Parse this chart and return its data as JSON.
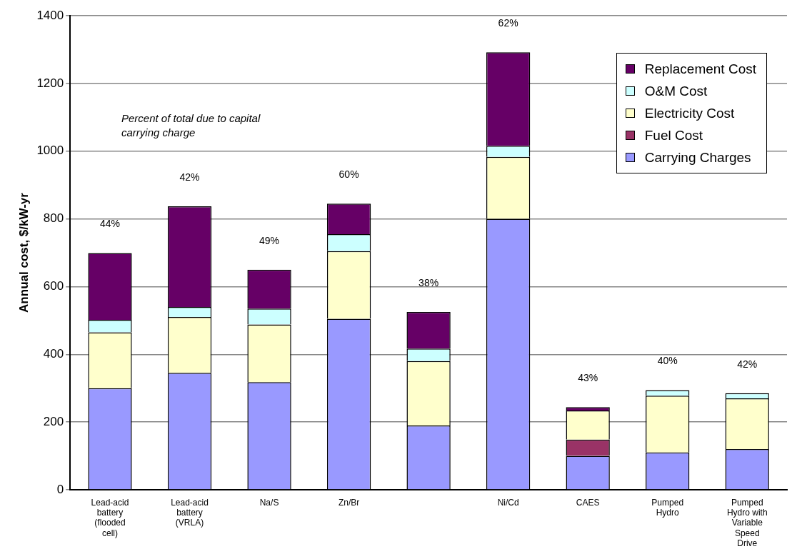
{
  "chart_data": {
    "type": "bar",
    "stacked": true,
    "ylabel": "Annual cost, $/kW-yr",
    "categories": [
      "Lead-acid battery (flooded cell)",
      "Lead-acid battery (VRLA)",
      "Na/S",
      "Zn/Br",
      null,
      "Ni/Cd",
      "CAES",
      "Pumped Hydro",
      "Pumped Hydro with Variable Speed Drive"
    ],
    "series": [
      {
        "name": "Carrying Charges",
        "color": "#9999ff",
        "values": [
          300,
          345,
          318,
          505,
          190,
          800,
          100,
          110,
          120
        ]
      },
      {
        "name": "Fuel Cost",
        "color": "#993366",
        "values": [
          0,
          0,
          0,
          0,
          0,
          0,
          48,
          0,
          0
        ]
      },
      {
        "name": "Electricity Cost",
        "color": "#ffffcc",
        "values": [
          165,
          165,
          170,
          200,
          190,
          183,
          86,
          168,
          150
        ]
      },
      {
        "name": "O&M Cost",
        "color": "#ccffff",
        "values": [
          37,
          30,
          47,
          50,
          37,
          33,
          0,
          16,
          15
        ]
      },
      {
        "name": "Replacement Cost",
        "color": "#660066",
        "values": [
          197,
          297,
          115,
          90,
          108,
          276,
          10,
          0,
          0
        ]
      }
    ],
    "ylim": [
      0,
      1400
    ],
    "yticks": [
      0,
      200,
      400,
      600,
      800,
      1000,
      1200,
      1400
    ],
    "grid": "y",
    "legend": "top right",
    "annotations": [
      "Percent of total due to capital carrying charge",
      "44%",
      "42%",
      "49%",
      "60%",
      "38%",
      "62%",
      "43%",
      "40%",
      "42%"
    ]
  }
}
